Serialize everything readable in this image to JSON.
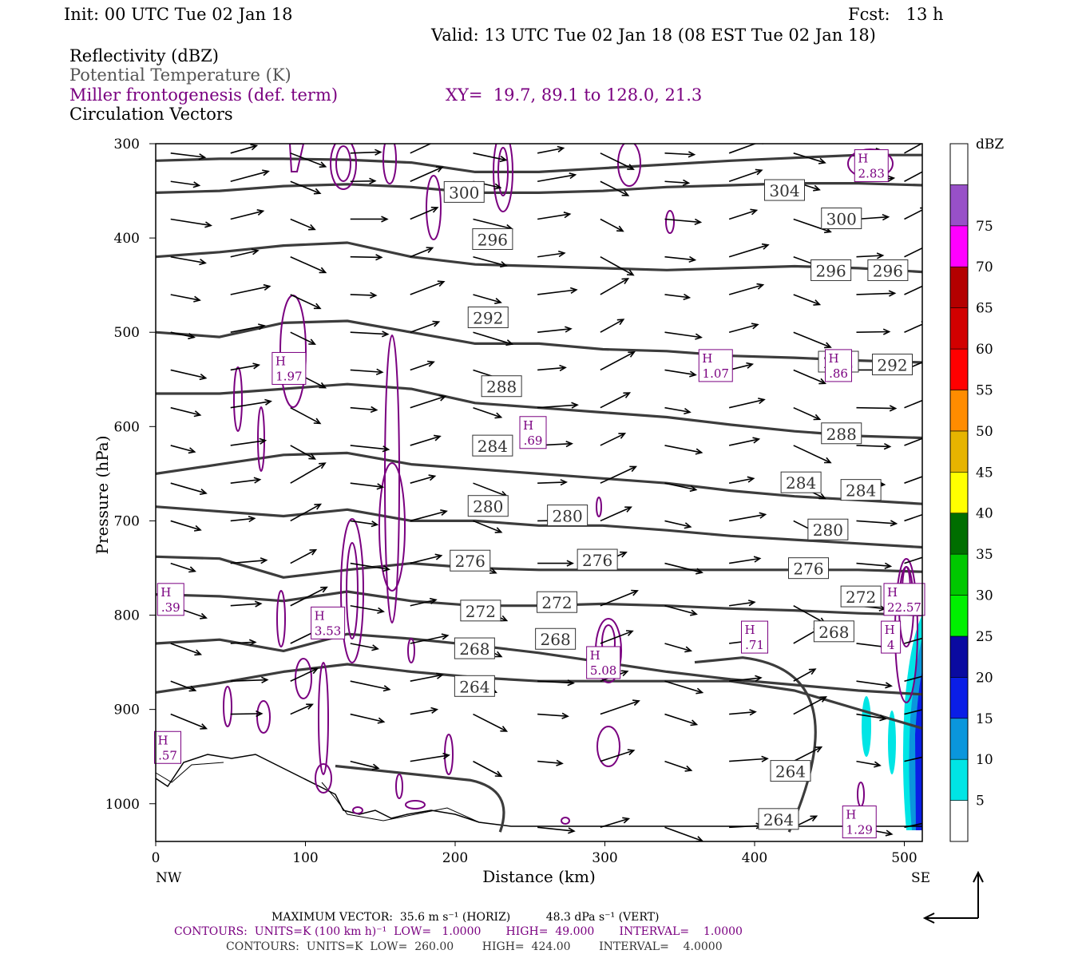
{
  "header": {
    "init": "Init: 00 UTC Tue 02 Jan 18",
    "fcst": "Fcst:   13 h",
    "valid": "Valid: 13 UTC Tue 02 Jan 18 (08 EST Tue 02 Jan 18)",
    "fields": [
      {
        "text": "Reflectivity (dBZ)",
        "color": "#000000"
      },
      {
        "text": "Potential Temperature (K)",
        "color": "#555555"
      },
      {
        "text": "Miller frontogenesis (def. term)",
        "color": "#7a0080"
      },
      {
        "text": "Circulation Vectors",
        "color": "#000000"
      }
    ],
    "xy": "XY=  19.7, 89.1 to 128.0, 21.3"
  },
  "colorbar": {
    "title": "dBZ",
    "labels": [
      "5",
      "10",
      "15",
      "20",
      "25",
      "30",
      "35",
      "40",
      "45",
      "50",
      "55",
      "60",
      "65",
      "70",
      "75"
    ],
    "colors": [
      "#ffffff",
      "#00e5e5",
      "#0a96dc",
      "#0a1ee6",
      "#0a0aa0",
      "#00f000",
      "#00c800",
      "#006e00",
      "#ffff00",
      "#e6b400",
      "#ff8c00",
      "#ff0000",
      "#d20000",
      "#b40000",
      "#ff00ff",
      "#9850c8",
      "#ffffff"
    ]
  },
  "chart_data": {
    "type": "cross-section",
    "xlabel": "Distance (km)",
    "ylabel": "Pressure (hPa)",
    "xlim": [
      0,
      512
    ],
    "ylim": [
      1040,
      300
    ],
    "x_ticks": [
      "0",
      "100",
      "200",
      "300",
      "400",
      "500"
    ],
    "y_ticks": [
      "300",
      "400",
      "500",
      "600",
      "700",
      "800",
      "900",
      "1000"
    ],
    "left_end_label": "NW",
    "right_end_label": "SE",
    "theta_contours": [
      {
        "label": "304",
        "p": [
          318,
          316,
          316,
          317,
          320,
          330,
          330,
          326,
          322,
          318,
          315,
          312,
          312
        ]
      },
      {
        "label": "300",
        "p": [
          352,
          350,
          345,
          343,
          346,
          352,
          352,
          350,
          346,
          344,
          342,
          342,
          344
        ]
      },
      {
        "label": "296",
        "p": [
          420,
          415,
          408,
          405,
          420,
          428,
          430,
          432,
          434,
          432,
          430,
          432,
          436
        ]
      },
      {
        "label": "292",
        "p": [
          500,
          505,
          490,
          488,
          500,
          512,
          512,
          518,
          520,
          525,
          527,
          530,
          532
        ]
      },
      {
        "label": "288",
        "p": [
          565,
          565,
          560,
          555,
          560,
          575,
          580,
          585,
          590,
          598,
          605,
          610,
          612
        ]
      },
      {
        "label": "284",
        "p": [
          650,
          640,
          630,
          628,
          640,
          645,
          650,
          655,
          660,
          668,
          674,
          678,
          682
        ]
      },
      {
        "label": "280",
        "p": [
          685,
          690,
          695,
          688,
          700,
          700,
          705,
          705,
          710,
          716,
          720,
          724,
          728
        ]
      },
      {
        "label": "276",
        "p": [
          738,
          740,
          760,
          752,
          745,
          750,
          752,
          752,
          752,
          752,
          752,
          752,
          754
        ]
      },
      {
        "label": "272",
        "p": [
          778,
          780,
          785,
          775,
          785,
          790,
          790,
          788,
          790,
          793,
          795,
          798,
          800
        ]
      },
      {
        "label": "268",
        "p": [
          830,
          826,
          838,
          820,
          825,
          832,
          840,
          850,
          860,
          868,
          874,
          880,
          884
        ]
      },
      {
        "label": "264",
        "p": [
          882,
          872,
          860,
          852,
          860,
          866,
          870,
          870,
          870,
          870,
          880,
          900,
          920
        ]
      }
    ],
    "theta_labels": [
      {
        "text": "300",
        "x": 206,
        "p": 352
      },
      {
        "text": "304",
        "x": 420,
        "p": 350
      },
      {
        "text": "300",
        "x": 458,
        "p": 380
      },
      {
        "text": "296",
        "x": 225,
        "p": 402
      },
      {
        "text": "296",
        "x": 451,
        "p": 435
      },
      {
        "text": "296",
        "x": 489,
        "p": 435
      },
      {
        "text": "292",
        "x": 222,
        "p": 485
      },
      {
        "text": "292",
        "x": 456,
        "p": 532
      },
      {
        "text": "292",
        "x": 492,
        "p": 535
      },
      {
        "text": "288",
        "x": 231,
        "p": 558
      },
      {
        "text": "288",
        "x": 458,
        "p": 608
      },
      {
        "text": "284",
        "x": 225,
        "p": 621
      },
      {
        "text": "284",
        "x": 431,
        "p": 660
      },
      {
        "text": "284",
        "x": 471,
        "p": 668
      },
      {
        "text": "280",
        "x": 222,
        "p": 685
      },
      {
        "text": "280",
        "x": 275,
        "p": 695
      },
      {
        "text": "280",
        "x": 449,
        "p": 710
      },
      {
        "text": "276",
        "x": 210,
        "p": 743
      },
      {
        "text": "276",
        "x": 295,
        "p": 742
      },
      {
        "text": "276",
        "x": 436,
        "p": 751
      },
      {
        "text": "272",
        "x": 217,
        "p": 796
      },
      {
        "text": "272",
        "x": 268,
        "p": 787
      },
      {
        "text": "272",
        "x": 471,
        "p": 781
      },
      {
        "text": "268",
        "x": 213,
        "p": 836
      },
      {
        "text": "268",
        "x": 267,
        "p": 826
      },
      {
        "text": "268",
        "x": 453,
        "p": 818
      },
      {
        "text": "264",
        "x": 213,
        "p": 876
      },
      {
        "text": "264",
        "x": 424,
        "p": 966
      },
      {
        "text": "264",
        "x": 416,
        "p": 1017
      }
    ],
    "h_maxima": [
      {
        "label": "H",
        "value": "2.83",
        "x": 478,
        "p": 325
      },
      {
        "label": "H",
        "value": "1.97",
        "x": 89,
        "p": 540
      },
      {
        "label": "H",
        "value": "1.07",
        "x": 374,
        "p": 537
      },
      {
        "label": "H",
        "value": ".86",
        "x": 456,
        "p": 537
      },
      {
        "label": "H",
        "value": ".69",
        "x": 252,
        "p": 608
      },
      {
        "label": "H",
        "value": ".39",
        "x": 10,
        "p": 785
      },
      {
        "label": "H",
        "value": "3.53",
        "x": 115,
        "p": 810
      },
      {
        "label": "H",
        "value": ".71",
        "x": 400,
        "p": 825
      },
      {
        "label": "H",
        "value": "5.08",
        "x": 299,
        "p": 852
      },
      {
        "label": "H",
        "value": "22.57",
        "x": 500,
        "p": 785
      },
      {
        "label": "H",
        "value": "4",
        "x": 491,
        "p": 825
      },
      {
        "label": "H",
        "value": ".57",
        "x": 8,
        "p": 942
      },
      {
        "label": "H",
        "value": "1.29",
        "x": 470,
        "p": 1021
      }
    ]
  },
  "footer": {
    "max_vector": "MAXIMUM VECTOR:  35.6 m s⁻¹ (HORIZ)          48.3 dPa s⁻¹ (VERT)",
    "contours_purple": "CONTOURS:  UNITS=K (100 km h)⁻¹  LOW=   1.0000       HIGH=  49.000       INTERVAL=    1.0000",
    "contours_gray": "CONTOURS:  UNITS=K  LOW=  260.00        HIGH=  424.00        INTERVAL=    4.0000"
  }
}
